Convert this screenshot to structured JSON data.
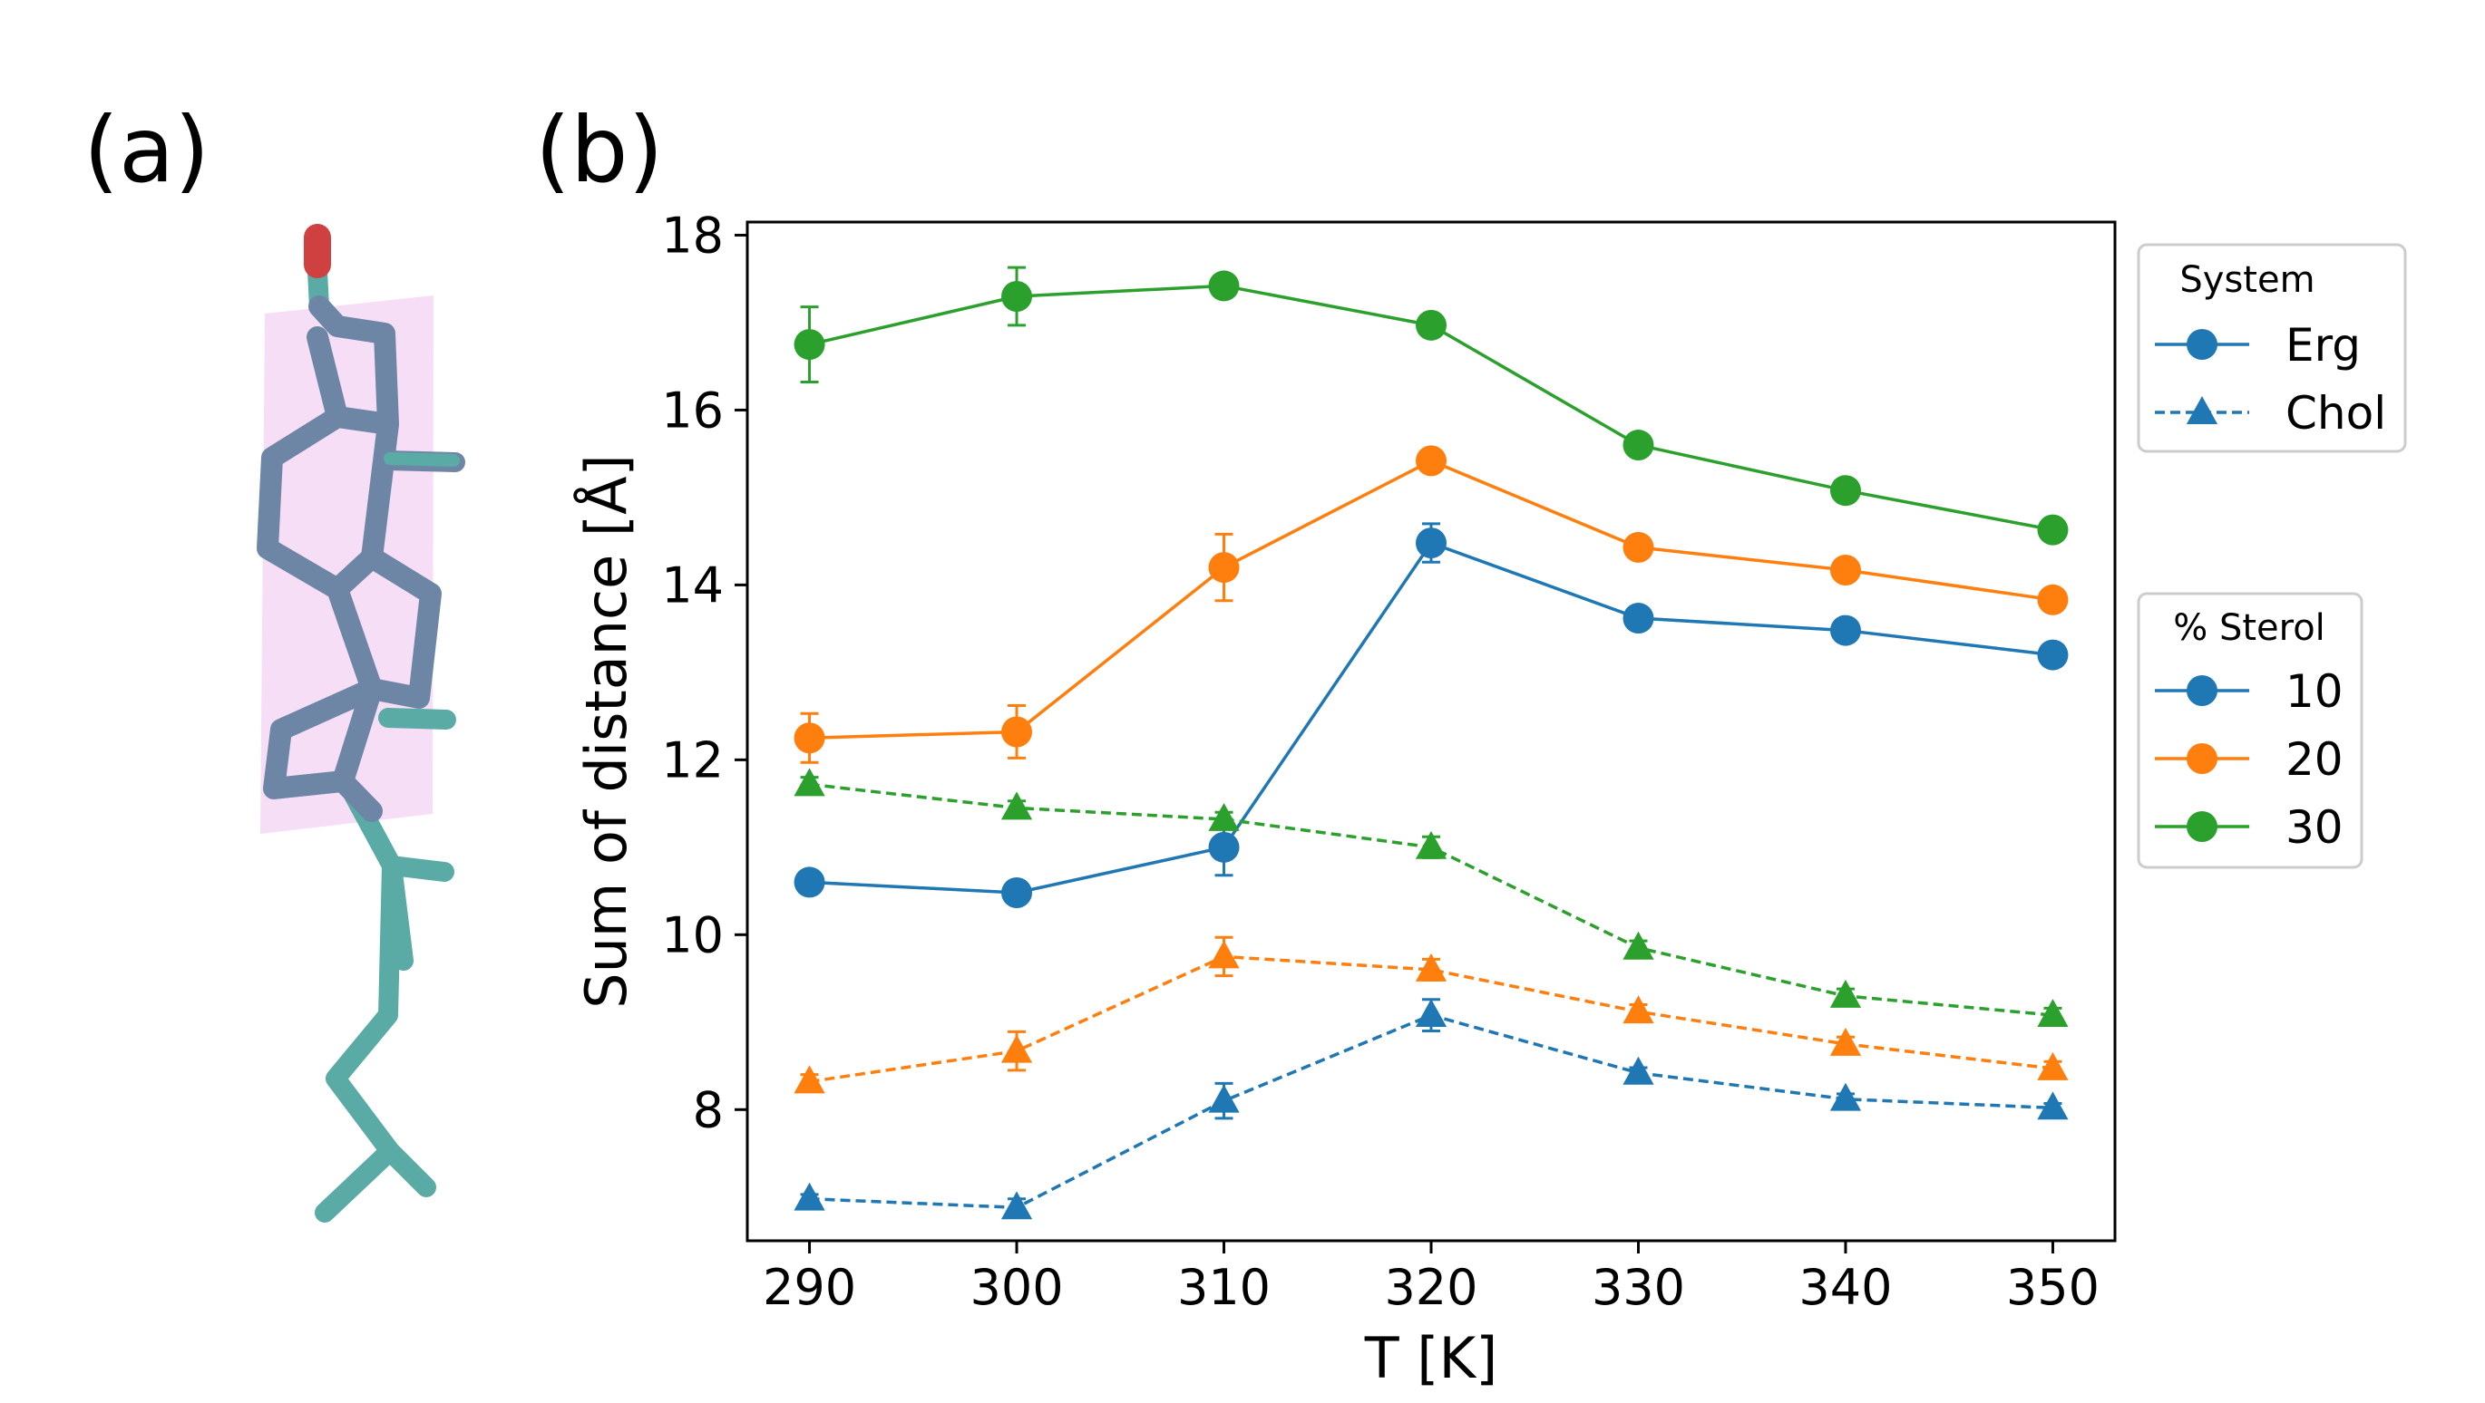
{
  "panels": {
    "a_label": "(a)",
    "b_label": "(b)"
  },
  "chart_data": {
    "type": "line",
    "xlabel": "T [K]",
    "ylabel": "Sum of distance [Å]",
    "x": [
      290,
      300,
      310,
      320,
      330,
      340,
      350
    ],
    "xlim": [
      287,
      353
    ],
    "ylim": [
      6.5,
      18.15
    ],
    "xticks": [
      290,
      300,
      310,
      320,
      330,
      340,
      350
    ],
    "yticks": [
      8,
      10,
      12,
      14,
      16,
      18
    ],
    "grid": false,
    "colors": {
      "10": "#1f77b4",
      "20": "#ff7f0e",
      "30": "#2ca02c"
    },
    "series": [
      {
        "system": "Erg",
        "sterol": "10",
        "values": [
          10.6,
          10.48,
          11.0,
          14.48,
          13.62,
          13.48,
          13.2
        ],
        "errors": [
          0.08,
          0.08,
          0.32,
          0.22,
          0.08,
          0.08,
          0.08
        ]
      },
      {
        "system": "Erg",
        "sterol": "20",
        "values": [
          12.25,
          12.32,
          14.2,
          15.42,
          14.43,
          14.17,
          13.83
        ],
        "errors": [
          0.28,
          0.3,
          0.38,
          0.08,
          0.08,
          0.08,
          0.08
        ]
      },
      {
        "system": "Erg",
        "sterol": "30",
        "values": [
          16.75,
          17.3,
          17.42,
          16.97,
          15.6,
          15.08,
          14.63
        ],
        "errors": [
          0.43,
          0.33,
          0.08,
          0.08,
          0.08,
          0.08,
          0.08
        ]
      },
      {
        "system": "Chol",
        "sterol": "10",
        "values": [
          6.98,
          6.88,
          8.1,
          9.08,
          8.42,
          8.12,
          8.02
        ],
        "errors": [
          0.05,
          0.1,
          0.2,
          0.18,
          0.06,
          0.06,
          0.05
        ]
      },
      {
        "system": "Chol",
        "sterol": "20",
        "values": [
          8.32,
          8.67,
          9.75,
          9.6,
          9.12,
          8.75,
          8.47
        ],
        "errors": [
          0.08,
          0.22,
          0.22,
          0.12,
          0.08,
          0.08,
          0.08
        ]
      },
      {
        "system": "Chol",
        "sterol": "30",
        "values": [
          11.72,
          11.45,
          11.32,
          11.0,
          9.85,
          9.3,
          9.08
        ],
        "errors": [
          0.08,
          0.08,
          0.08,
          0.12,
          0.08,
          0.08,
          0.08
        ]
      }
    ],
    "legend_system": {
      "title": "System",
      "entries": [
        "Erg",
        "Chol"
      ],
      "placement": "right-top"
    },
    "legend_sterol": {
      "title": "% Sterol",
      "entries": [
        "10",
        "20",
        "30"
      ],
      "placement": "right-middle"
    }
  }
}
